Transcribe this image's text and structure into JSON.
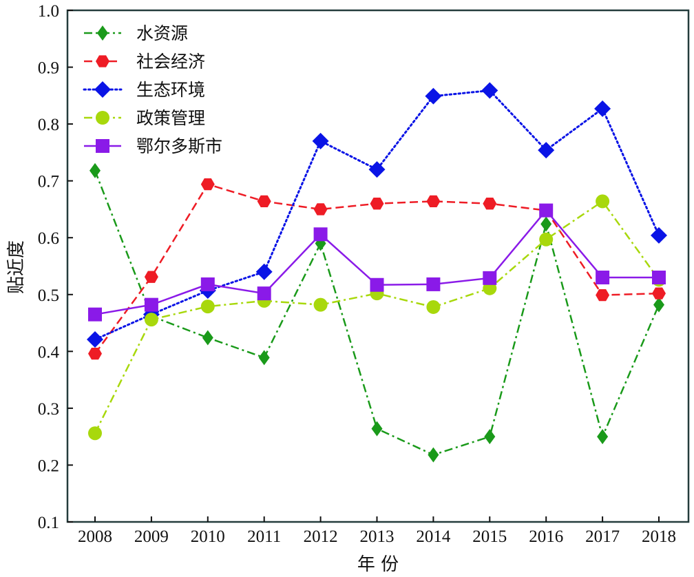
{
  "chart_data": {
    "type": "line",
    "title": "",
    "xlabel": "年 份",
    "ylabel": "贴近度",
    "ylim": [
      0.1,
      1.0
    ],
    "yticks": [
      "0.1",
      "0.2",
      "0.3",
      "0.4",
      "0.5",
      "0.6",
      "0.7",
      "0.8",
      "0.9",
      "1.0"
    ],
    "grid": false,
    "legend_position": "upper left",
    "categories": [
      "2008",
      "2009",
      "2010",
      "2011",
      "2012",
      "2013",
      "2014",
      "2015",
      "2016",
      "2017",
      "2018"
    ],
    "series": [
      {
        "name": "水资源",
        "color": "#1a9a1a",
        "marker": "diamond",
        "linestyle": "dashdot",
        "values": [
          0.718,
          0.462,
          0.424,
          0.389,
          0.59,
          0.264,
          0.218,
          0.25,
          0.624,
          0.25,
          0.482
        ]
      },
      {
        "name": "社会经济",
        "color": "#ee1c25",
        "marker": "hexagon",
        "linestyle": "dashed",
        "values": [
          0.396,
          0.531,
          0.694,
          0.664,
          0.65,
          0.66,
          0.664,
          0.66,
          0.648,
          0.499,
          0.502
        ]
      },
      {
        "name": "生态环境",
        "color": "#0a14e6",
        "marker": "diamond-large",
        "linestyle": "dotted",
        "values": [
          0.421,
          0.465,
          0.507,
          0.54,
          0.77,
          0.72,
          0.849,
          0.859,
          0.754,
          0.827,
          0.604
        ]
      },
      {
        "name": "政策管理",
        "color": "#a8d80c",
        "marker": "circle",
        "linestyle": "dashdot",
        "values": [
          0.256,
          0.456,
          0.479,
          0.489,
          0.482,
          0.502,
          0.478,
          0.511,
          0.597,
          0.664,
          0.526
        ]
      },
      {
        "name": "鄂尔多斯市",
        "color": "#8a1ae8",
        "marker": "square",
        "linestyle": "solid",
        "values": [
          0.465,
          0.482,
          0.518,
          0.502,
          0.606,
          0.517,
          0.518,
          0.529,
          0.648,
          0.53,
          0.53
        ]
      }
    ]
  }
}
